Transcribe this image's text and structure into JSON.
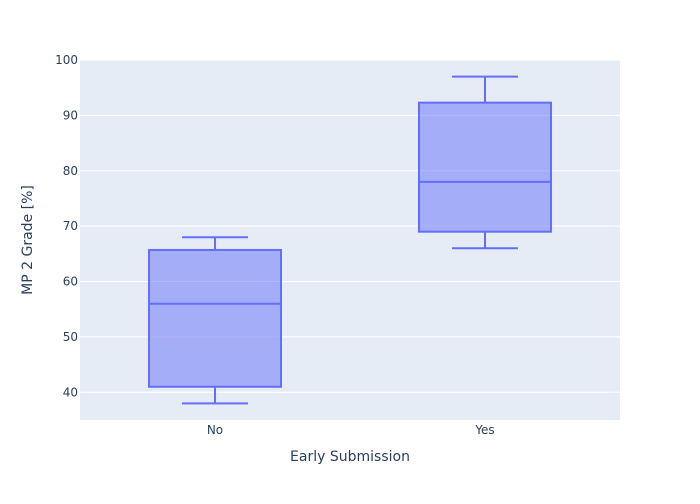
{
  "chart_data": {
    "type": "box",
    "title": "",
    "xlabel": "Early Submission",
    "ylabel": "MP 2 Grade [%]",
    "ylim": [
      35,
      100
    ],
    "yticks": [
      40,
      50,
      60,
      70,
      80,
      90,
      100
    ],
    "grid": true,
    "categories": [
      "No",
      "Yes"
    ],
    "boxes": [
      {
        "category": "No",
        "min": 38,
        "q1": 41,
        "median": 56,
        "q3": 65.7,
        "max": 68
      },
      {
        "category": "Yes",
        "min": 66,
        "q1": 69,
        "median": 78,
        "q3": 92.3,
        "max": 97
      }
    ],
    "colors": {
      "plot_bg": "#e5ecf6",
      "grid": "#ffffff",
      "box_line": "#636efa",
      "box_fill": "rgba(99,110,250,0.5)",
      "text": "#2a3f5f"
    }
  }
}
